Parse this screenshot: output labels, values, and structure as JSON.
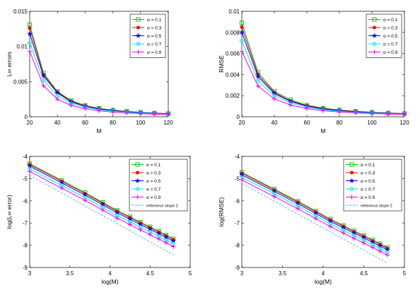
{
  "chart_data": [
    {
      "type": "line",
      "title": "",
      "xlabel": "M",
      "ylabel": "L∞ errors",
      "xlim": [
        20,
        120
      ],
      "ylim": [
        0,
        0.015
      ],
      "xticks": [
        20,
        40,
        60,
        80,
        100,
        120
      ],
      "xtick_labels": [
        "20",
        "40",
        "60",
        "80",
        "100",
        "120"
      ],
      "yticks": [
        0,
        0.005,
        0.01,
        0.015
      ],
      "ytick_labels": [
        "0",
        "0.005",
        "0.01",
        "0.015"
      ],
      "legend_position": "top-right",
      "grid": false,
      "x": [
        20,
        30,
        40,
        50,
        60,
        70,
        80,
        90,
        100,
        110,
        120
      ],
      "series": [
        {
          "name": "α = 0.1",
          "color": "#00c000",
          "marker": "square",
          "values": [
            0.0131,
            0.0062,
            0.0036,
            0.0023,
            0.0016,
            0.0012,
            0.00095,
            0.00077,
            0.00063,
            0.00053,
            0.00045
          ]
        },
        {
          "name": "α = 0.3",
          "color": "#ff0000",
          "marker": "circle",
          "values": [
            0.0126,
            0.006,
            0.0035,
            0.0022,
            0.00155,
            0.00115,
            0.00091,
            0.00074,
            0.00061,
            0.00051,
            0.00043
          ]
        },
        {
          "name": "α = 0.5",
          "color": "#0000ff",
          "marker": "star",
          "values": [
            0.0118,
            0.0058,
            0.0034,
            0.0021,
            0.0015,
            0.0011,
            0.00088,
            0.00071,
            0.00059,
            0.00049,
            0.00042
          ]
        },
        {
          "name": "α = 0.7",
          "color": "#00e5ee",
          "marker": "diamond",
          "values": [
            0.0105,
            0.0052,
            0.003,
            0.0019,
            0.00135,
            0.001,
            0.00079,
            0.00064,
            0.00053,
            0.00044,
            0.00037
          ]
        },
        {
          "name": "α = 0.9",
          "color": "#ff00ff",
          "marker": "plus",
          "values": [
            0.0093,
            0.0044,
            0.0025,
            0.0016,
            0.00115,
            0.00085,
            0.00066,
            0.00054,
            0.00045,
            0.00037,
            0.00031
          ]
        }
      ]
    },
    {
      "type": "line",
      "title": "",
      "xlabel": "M",
      "ylabel": "RMSE",
      "xlim": [
        20,
        120
      ],
      "ylim": [
        0,
        0.01
      ],
      "xticks": [
        20,
        40,
        60,
        80,
        100,
        120
      ],
      "xtick_labels": [
        "20",
        "40",
        "60",
        "80",
        "100",
        "120"
      ],
      "yticks": [
        0,
        0.002,
        0.004,
        0.006,
        0.008,
        0.01
      ],
      "ytick_labels": [
        "0",
        "0.002",
        "0.004",
        "0.006",
        "0.008",
        "0.01"
      ],
      "legend_position": "top-right",
      "grid": false,
      "x": [
        20,
        30,
        40,
        50,
        60,
        70,
        80,
        90,
        100,
        110,
        120
      ],
      "series": [
        {
          "name": "α = 0.1",
          "color": "#00c000",
          "marker": "square",
          "values": [
            0.0089,
            0.0042,
            0.0024,
            0.0016,
            0.0011,
            0.00082,
            0.00064,
            0.00052,
            0.00043,
            0.00036,
            0.00031
          ]
        },
        {
          "name": "α = 0.3",
          "color": "#ff0000",
          "marker": "circle",
          "values": [
            0.0085,
            0.004,
            0.0023,
            0.0015,
            0.00105,
            0.00078,
            0.00061,
            0.0005,
            0.00041,
            0.00034,
            0.00029
          ]
        },
        {
          "name": "α = 0.5",
          "color": "#0000ff",
          "marker": "star",
          "values": [
            0.008,
            0.0038,
            0.0022,
            0.00145,
            0.001,
            0.00074,
            0.00058,
            0.00047,
            0.00039,
            0.00033,
            0.00028
          ]
        },
        {
          "name": "α = 0.7",
          "color": "#00e5ee",
          "marker": "diamond",
          "values": [
            0.0072,
            0.0034,
            0.002,
            0.0013,
            0.0009,
            0.00066,
            0.00052,
            0.00042,
            0.00035,
            0.00029,
            0.00025
          ]
        },
        {
          "name": "α = 0.9",
          "color": "#ff00ff",
          "marker": "plus",
          "values": [
            0.0062,
            0.0029,
            0.0017,
            0.0011,
            0.00077,
            0.00057,
            0.00045,
            0.00036,
            0.0003,
            0.00025,
            0.00021
          ]
        }
      ]
    },
    {
      "type": "line",
      "title": "",
      "xlabel": "log(M)",
      "ylabel": "log(L∞ error)",
      "xlim": [
        3,
        5
      ],
      "ylim": [
        -9,
        -4
      ],
      "xticks": [
        3,
        3.5,
        4,
        4.5,
        5
      ],
      "xtick_labels": [
        "3",
        "3.5",
        "4",
        "4.5",
        "5"
      ],
      "yticks": [
        -9,
        -8,
        -7,
        -6,
        -5,
        -4
      ],
      "ytick_labels": [
        "-9",
        "-8",
        "-7",
        "-6",
        "-5",
        "-4"
      ],
      "legend_position": "top-right",
      "grid": false,
      "x": [
        3.0,
        3.4,
        3.69,
        3.91,
        4.09,
        4.25,
        4.38,
        4.5,
        4.61,
        4.7,
        4.79
      ],
      "series": [
        {
          "name": "α = 0.1",
          "color": "#00c000",
          "marker": "square",
          "values": [
            -4.33,
            -5.08,
            -5.63,
            -6.07,
            -6.43,
            -6.72,
            -6.96,
            -7.17,
            -7.37,
            -7.54,
            -7.71
          ]
        },
        {
          "name": "α = 0.3",
          "color": "#ff0000",
          "marker": "circle",
          "values": [
            -4.37,
            -5.12,
            -5.67,
            -6.11,
            -6.47,
            -6.76,
            -7.0,
            -7.21,
            -7.41,
            -7.58,
            -7.75
          ]
        },
        {
          "name": "α = 0.5",
          "color": "#0000ff",
          "marker": "star",
          "values": [
            -4.44,
            -5.19,
            -5.74,
            -6.18,
            -6.54,
            -6.83,
            -7.07,
            -7.28,
            -7.48,
            -7.65,
            -7.82
          ]
        },
        {
          "name": "α = 0.7",
          "color": "#00e5ee",
          "marker": "diamond",
          "values": [
            -4.56,
            -5.31,
            -5.86,
            -6.3,
            -6.66,
            -6.95,
            -7.19,
            -7.4,
            -7.6,
            -7.77,
            -7.94
          ]
        },
        {
          "name": "α = 0.9",
          "color": "#ff00ff",
          "marker": "plus",
          "values": [
            -4.68,
            -5.43,
            -5.98,
            -6.42,
            -6.78,
            -7.07,
            -7.31,
            -7.52,
            -7.72,
            -7.89,
            -8.06
          ]
        },
        {
          "name": "reference slope 2",
          "color": "#3fa9f5",
          "dashed": true,
          "values": [
            -4.85,
            -5.65,
            -6.23,
            -6.67,
            -7.03,
            -7.35,
            -7.61,
            -7.85,
            -8.07,
            -8.25,
            -8.43
          ]
        }
      ]
    },
    {
      "type": "line",
      "title": "",
      "xlabel": "log(M)",
      "ylabel": "log(RMSE)",
      "xlim": [
        3,
        5
      ],
      "ylim": [
        -9,
        -4
      ],
      "xticks": [
        3,
        3.5,
        4,
        4.5,
        5
      ],
      "xtick_labels": [
        "3",
        "3.5",
        "4",
        "4.5",
        "5"
      ],
      "yticks": [
        -9,
        -8,
        -7,
        -6,
        -5,
        -4
      ],
      "ytick_labels": [
        "-9",
        "-8",
        "-7",
        "-6",
        "-5",
        "-4"
      ],
      "legend_position": "top-right",
      "grid": false,
      "x": [
        3.0,
        3.4,
        3.69,
        3.91,
        4.09,
        4.25,
        4.38,
        4.5,
        4.61,
        4.7,
        4.79
      ],
      "series": [
        {
          "name": "α = 0.1",
          "color": "#00c000",
          "marker": "square",
          "values": [
            -4.72,
            -5.47,
            -6.02,
            -6.46,
            -6.82,
            -7.11,
            -7.35,
            -7.56,
            -7.76,
            -7.93,
            -8.1
          ]
        },
        {
          "name": "α = 0.3",
          "color": "#ff0000",
          "marker": "circle",
          "values": [
            -4.76,
            -5.51,
            -6.06,
            -6.5,
            -6.86,
            -7.15,
            -7.39,
            -7.6,
            -7.8,
            -7.97,
            -8.14
          ]
        },
        {
          "name": "α = 0.5",
          "color": "#0000ff",
          "marker": "star",
          "values": [
            -4.83,
            -5.58,
            -6.13,
            -6.57,
            -6.93,
            -7.22,
            -7.46,
            -7.67,
            -7.87,
            -8.04,
            -8.21
          ]
        },
        {
          "name": "α = 0.7",
          "color": "#00e5ee",
          "marker": "diamond",
          "values": [
            -4.94,
            -5.69,
            -6.24,
            -6.68,
            -7.04,
            -7.33,
            -7.57,
            -7.78,
            -7.98,
            -8.15,
            -8.32
          ]
        },
        {
          "name": "α = 0.9",
          "color": "#ff00ff",
          "marker": "plus",
          "values": [
            -5.06,
            -5.81,
            -6.36,
            -6.8,
            -7.16,
            -7.45,
            -7.69,
            -7.9,
            -8.1,
            -8.27,
            -8.44
          ]
        },
        {
          "name": "reference slope 2",
          "color": "#3fa9f5",
          "dashed": true,
          "values": [
            -5.22,
            -6.02,
            -6.6,
            -7.04,
            -7.4,
            -7.72,
            -7.98,
            -8.22,
            -8.44,
            -8.62,
            -8.8
          ]
        }
      ]
    }
  ]
}
